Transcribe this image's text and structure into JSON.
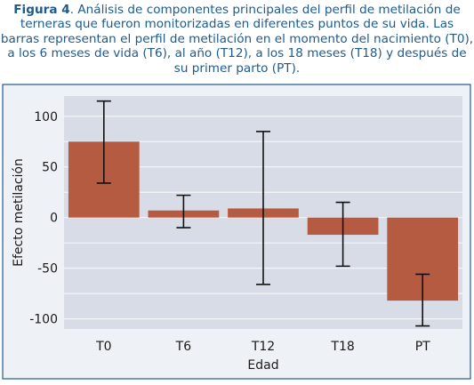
{
  "caption": {
    "label": "Figura 4",
    "text": ". Análisis de componentes principales del perfil de metilación de terneras que fueron monitorizadas en diferentes puntos de su vida. Las barras representan el perfil de metilación en el momento del nacimiento (T0), a los 6 meses de vida (T6), al año (T12), a los 18 meses (T18) y después de su primer parto (PT)."
  },
  "chart_data": {
    "type": "bar",
    "categories": [
      "T0",
      "T6",
      "T12",
      "T18",
      "PT"
    ],
    "values": [
      75,
      7,
      9,
      -17,
      -82
    ],
    "error_low": [
      34,
      -10,
      -66,
      -48,
      -107
    ],
    "error_high": [
      115,
      22,
      85,
      15,
      -56
    ],
    "title": "",
    "xlabel": "Edad",
    "ylabel": "Efecto metilación",
    "ylim": [
      -110,
      120
    ],
    "yticks": [
      -100,
      -50,
      0,
      50,
      100
    ],
    "grid": true,
    "colors": {
      "bar": "#b55b42",
      "plot_background": "#d8dce6",
      "frame_background": "#eef1f6",
      "frame_border": "#1e5a8c",
      "grid": "#f4f5f8",
      "caption": "#1e5a8c",
      "axis_text": "#1a1a1a"
    }
  }
}
